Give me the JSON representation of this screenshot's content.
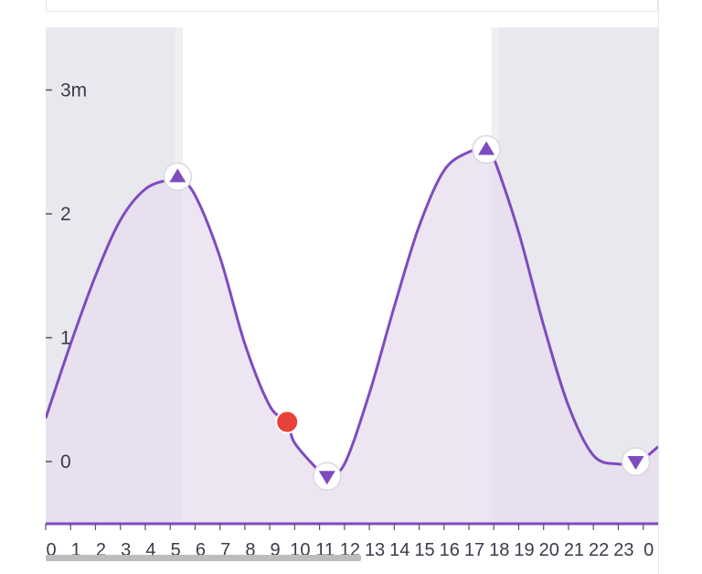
{
  "chart_data": {
    "type": "area",
    "y_axis": {
      "ticks": [
        {
          "value": 0,
          "label": "0"
        },
        {
          "value": 1,
          "label": "1"
        },
        {
          "value": 2,
          "label": "2"
        },
        {
          "value": 3,
          "label": "3m"
        }
      ],
      "ylim": [
        -0.5,
        3.5
      ]
    },
    "x_axis": {
      "tick_labels": [
        "0",
        "1",
        "2",
        "3",
        "4",
        "5",
        "6",
        "7",
        "8",
        "9",
        "10",
        "11",
        "12",
        "13",
        "14",
        "15",
        "16",
        "17",
        "18",
        "19",
        "20",
        "21",
        "22",
        "23",
        "0"
      ],
      "xlim": [
        0,
        24.6
      ]
    },
    "series": [
      {
        "x": [
          0.0,
          1.0,
          2.0,
          3.0,
          4.0,
          5.0,
          5.3,
          6.0,
          7.0,
          8.0,
          9.0,
          9.7,
          10.0,
          11.0,
          11.3,
          12.0,
          13.0,
          14.0,
          15.0,
          16.0,
          17.0,
          17.7,
          18.0,
          19.0,
          20.0,
          21.0,
          22.0,
          23.0,
          23.7,
          24.0,
          24.6
        ],
        "y": [
          0.35,
          0.95,
          1.5,
          1.95,
          2.2,
          2.28,
          2.3,
          2.15,
          1.65,
          0.95,
          0.45,
          0.32,
          0.15,
          -0.08,
          -0.12,
          -0.02,
          0.55,
          1.25,
          1.9,
          2.35,
          2.5,
          2.52,
          2.45,
          1.85,
          1.1,
          0.45,
          0.05,
          -0.02,
          0.0,
          0.02,
          0.12
        ]
      }
    ],
    "extremes": [
      {
        "kind": "high",
        "x": 5.3,
        "y": 2.3
      },
      {
        "kind": "low",
        "x": 11.3,
        "y": -0.12
      },
      {
        "kind": "high",
        "x": 17.7,
        "y": 2.52
      },
      {
        "kind": "low",
        "x": 23.7,
        "y": 0.0
      }
    ],
    "current_point": {
      "x": 9.7,
      "y": 0.32
    },
    "night_ranges": [
      {
        "start": 0,
        "end": 5.5
      },
      {
        "start": 17.9,
        "end": 24.6
      }
    ],
    "colors": {
      "line": "#7e4bbf",
      "fill": "#e8dcef",
      "night": "#e8e8ee",
      "night_fill": "#dcd3e6",
      "dawn_band": "#f0f0f4",
      "marker": "#7e4bbf",
      "current": "#e8423a",
      "axis": "#7e4bbf"
    }
  },
  "scrollbar": {
    "position_fraction": 0.0,
    "visible_fraction": 0.515
  }
}
